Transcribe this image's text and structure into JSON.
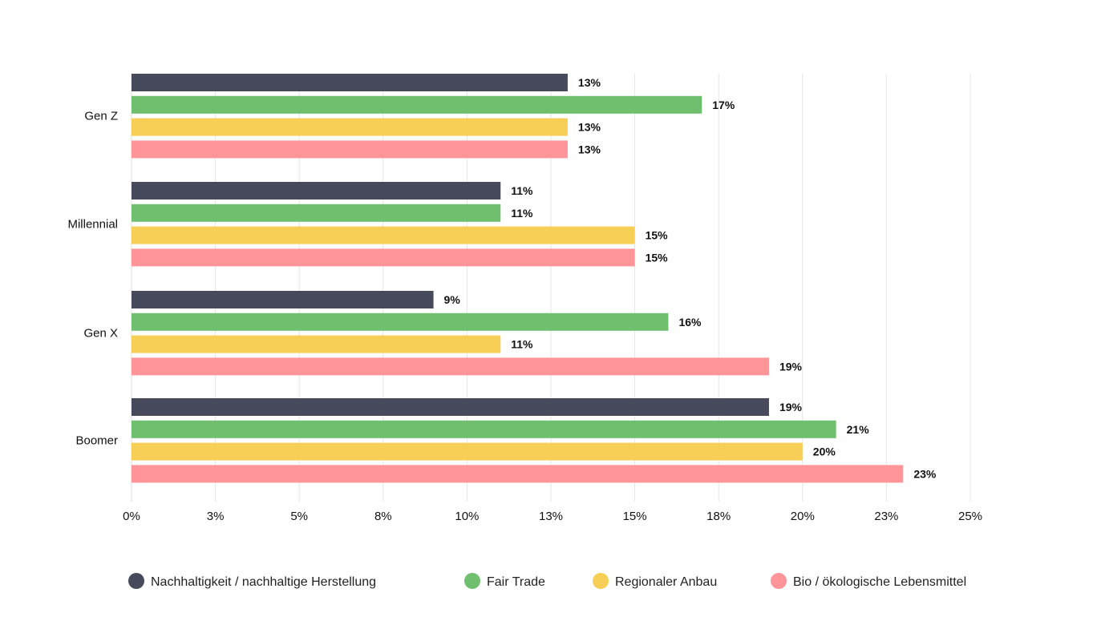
{
  "chart_data": {
    "type": "bar",
    "orientation": "horizontal",
    "categories": [
      "Gen Z",
      "Millennial",
      "Gen X",
      "Boomer"
    ],
    "series": [
      {
        "name": "Nachhaltigkeit / nachhaltige Herstellung",
        "color": "#464a5a",
        "values": [
          13,
          11,
          9,
          19
        ],
        "labels": [
          "13%",
          "11%",
          "9%",
          "19%"
        ]
      },
      {
        "name": "Fair Trade",
        "color": "#70bf6f",
        "values": [
          17,
          11,
          16,
          21
        ],
        "labels": [
          "17%",
          "11%",
          "16%",
          "21%"
        ]
      },
      {
        "name": "Regionaler Anbau",
        "color": "#f7cf57",
        "values": [
          13,
          15,
          11,
          20
        ],
        "labels": [
          "13%",
          "15%",
          "11%",
          "20%"
        ]
      },
      {
        "name": "Bio / ökologische Lebensmittel",
        "color": "#ff9599",
        "values": [
          13,
          15,
          19,
          23
        ],
        "labels": [
          "13%",
          "15%",
          "19%",
          "23%"
        ]
      }
    ],
    "xlim": [
      0,
      25
    ],
    "x_ticks": [
      0,
      2.5,
      5,
      7.5,
      10,
      12.5,
      15,
      17.5,
      20,
      22.5,
      25
    ],
    "x_tick_labels": [
      "0%",
      "3%",
      "5%",
      "8%",
      "10%",
      "13%",
      "15%",
      "18%",
      "20%",
      "23%",
      "25%"
    ],
    "grid": true,
    "legend_position": "bottom",
    "title": "",
    "xlabel": "",
    "ylabel": ""
  }
}
